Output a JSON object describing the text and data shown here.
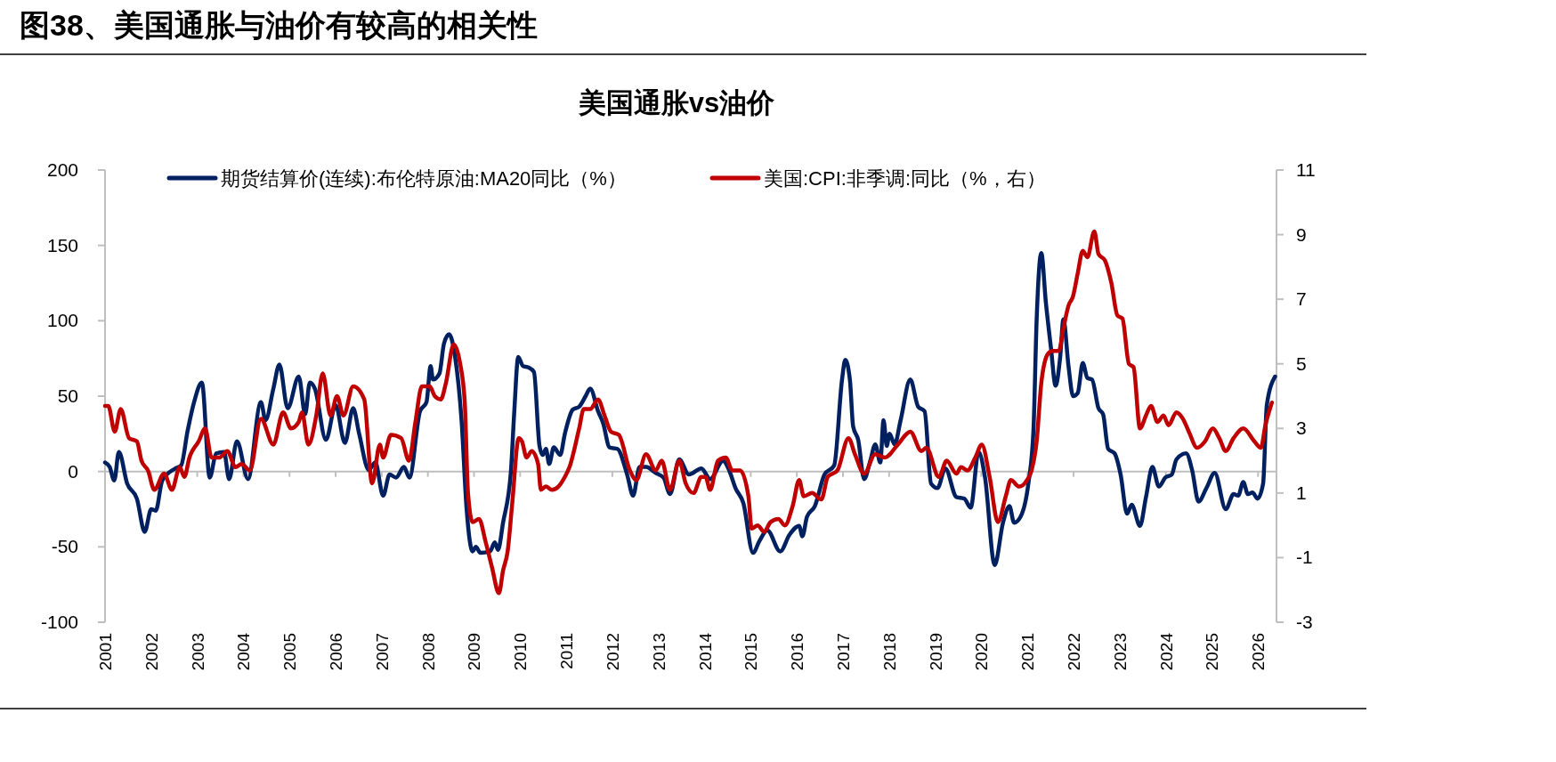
{
  "chart_data": {
    "type": "line",
    "title": "图38、美国通胀与油价有较高的相关性",
    "subtitle": "美国通胀vs油价",
    "xlim": [
      2001,
      2026.4
    ],
    "xticks": [
      2001,
      2002,
      2003,
      2004,
      2005,
      2006,
      2007,
      2008,
      2009,
      2010,
      2011,
      2012,
      2013,
      2014,
      2015,
      2016,
      2017,
      2018,
      2019,
      2020,
      2021,
      2022,
      2023,
      2024,
      2025,
      2026
    ],
    "ylim": [
      -100,
      200
    ],
    "yticks": [
      -100,
      -50,
      0,
      50,
      100,
      150,
      200
    ],
    "y2lim": [
      -3,
      11
    ],
    "y2ticks": [
      -3,
      -1,
      1,
      3,
      5,
      7,
      9,
      11
    ],
    "legend": "top",
    "line_style": "solid",
    "marker": "none",
    "series": [
      {
        "name": "期货结算价(连续):布伦特原油:MA20同比（%）",
        "color": "#002060",
        "x": [
          2001.0,
          2001.1,
          2001.2,
          2001.3,
          2001.48,
          2001.69,
          2001.86,
          2002.0,
          2002.1,
          2002.24,
          2002.52,
          2002.65,
          2002.79,
          2002.93,
          2003.1,
          2003.27,
          2003.41,
          2003.58,
          2003.69,
          2003.86,
          2004.1,
          2004.38,
          2004.48,
          2004.65,
          2004.78,
          2004.96,
          2005.2,
          2005.34,
          2005.44,
          2005.55,
          2005.79,
          2006.0,
          2006.2,
          2006.38,
          2006.51,
          2006.72,
          2006.86,
          2007.03,
          2007.17,
          2007.31,
          2007.48,
          2007.6,
          2007.83,
          2007.97,
          2008.06,
          2008.11,
          2008.25,
          2008.35,
          2008.46,
          2008.59,
          2008.73,
          2008.84,
          2008.97,
          2009.04,
          2009.14,
          2009.35,
          2009.45,
          2009.52,
          2009.63,
          2009.8,
          2009.87,
          2009.96,
          2010.06,
          2010.18,
          2010.3,
          2010.42,
          2010.49,
          2010.56,
          2010.63,
          2010.73,
          2010.87,
          2010.97,
          2011.14,
          2011.28,
          2011.42,
          2011.52,
          2011.69,
          2011.8,
          2011.94,
          2012.11,
          2012.32,
          2012.45,
          2012.59,
          2012.73,
          2012.94,
          2013.11,
          2013.25,
          2013.45,
          2013.66,
          2013.93,
          2014.12,
          2014.4,
          2014.53,
          2014.67,
          2014.84,
          2015.05,
          2015.19,
          2015.36,
          2015.64,
          2015.84,
          2016.05,
          2016.12,
          2016.22,
          2016.39,
          2016.6,
          2016.81,
          2016.98,
          2017.05,
          2017.15,
          2017.22,
          2017.33,
          2017.46,
          2017.6,
          2017.7,
          2017.81,
          2017.88,
          2017.95,
          2018.01,
          2018.12,
          2018.25,
          2018.46,
          2018.63,
          2018.77,
          2018.91,
          2019.05,
          2019.22,
          2019.46,
          2019.63,
          2019.77,
          2019.94,
          2020.08,
          2020.29,
          2020.47,
          2020.61,
          2020.71,
          2020.85,
          2021.02,
          2021.13,
          2021.2,
          2021.3,
          2021.4,
          2021.51,
          2021.61,
          2021.71,
          2021.78,
          2021.89,
          2021.99,
          2022.09,
          2022.2,
          2022.3,
          2022.4,
          2022.54,
          2022.64,
          2022.75,
          2022.89,
          2023.02,
          2023.16,
          2023.26,
          2023.44,
          2023.57,
          2023.71,
          2023.85,
          2023.99,
          2024.13,
          2024.23,
          2024.44,
          2024.57,
          2024.71,
          2024.88,
          2025.06,
          2025.3,
          2025.47,
          2025.57,
          2025.68,
          2025.78,
          2025.88,
          2025.99,
          2026.11,
          2026.19,
          2026.37
        ],
        "values": [
          6,
          3,
          -6,
          13,
          -8,
          -18,
          -40,
          -25,
          -26,
          -6,
          2,
          4,
          27,
          46,
          59,
          -4,
          12,
          13,
          -5,
          20,
          -5,
          46,
          34,
          55,
          71,
          42,
          63,
          38,
          59,
          55,
          21,
          44,
          19,
          42,
          25,
          1,
          6,
          -16,
          -2,
          -4,
          3,
          -4,
          40,
          46,
          70,
          61,
          65,
          85,
          91,
          76,
          34,
          -25,
          -53,
          -50,
          -54,
          -53,
          -47,
          -52,
          -34,
          0,
          38,
          76,
          70,
          69,
          66,
          17,
          11,
          15,
          5,
          16,
          11,
          25,
          41,
          43,
          50,
          55,
          40,
          32,
          16,
          15,
          -2,
          -16,
          3,
          3,
          -1,
          -4,
          -15,
          8,
          -2,
          2,
          -5,
          7,
          1,
          -11,
          -21,
          -54,
          -46,
          -39,
          -53,
          -42,
          -36,
          -43,
          -30,
          -23,
          -2,
          4,
          61,
          74,
          61,
          30,
          21,
          -5,
          8,
          18,
          6,
          34,
          17,
          25,
          18,
          34,
          61,
          43,
          40,
          -8,
          -11,
          2,
          -17,
          -18,
          -24,
          13,
          -4,
          -62,
          -34,
          -23,
          -34,
          -30,
          -8,
          27,
          101,
          145,
          112,
          82,
          57,
          76,
          101,
          70,
          50,
          52,
          72,
          62,
          61,
          42,
          38,
          15,
          12,
          -2,
          -28,
          -22,
          -36,
          -17,
          3,
          -10,
          -4,
          -2,
          8,
          12,
          1,
          -20,
          -11,
          -1,
          -25,
          -15,
          -16,
          -7,
          -15,
          -14,
          -18,
          -8,
          44,
          63
        ]
      },
      {
        "name": "美国:CPI:非季调:同比（%，右）",
        "color": "#c00000",
        "axis": "y2",
        "x": [
          2001.0,
          2001.07,
          2001.21,
          2001.34,
          2001.52,
          2001.69,
          2001.79,
          2001.93,
          2002.07,
          2002.28,
          2002.45,
          2002.62,
          2002.72,
          2002.83,
          2003.03,
          2003.17,
          2003.31,
          2003.48,
          2003.65,
          2003.83,
          2003.96,
          2004.14,
          2004.38,
          2004.65,
          2004.86,
          2005.03,
          2005.2,
          2005.27,
          2005.41,
          2005.58,
          2005.72,
          2005.89,
          2006.03,
          2006.17,
          2006.38,
          2006.62,
          2006.79,
          2006.96,
          2007.03,
          2007.2,
          2007.42,
          2007.59,
          2007.73,
          2007.87,
          2008.04,
          2008.15,
          2008.28,
          2008.39,
          2008.56,
          2008.7,
          2008.8,
          2008.87,
          2008.97,
          2009.11,
          2009.25,
          2009.39,
          2009.54,
          2009.63,
          2009.73,
          2009.83,
          2009.97,
          2010.04,
          2010.14,
          2010.25,
          2010.39,
          2010.45,
          2010.56,
          2010.69,
          2010.83,
          2010.97,
          2011.07,
          2011.28,
          2011.38,
          2011.52,
          2011.69,
          2011.83,
          2011.97,
          2012.14,
          2012.38,
          2012.52,
          2012.73,
          2012.94,
          2013.07,
          2013.25,
          2013.45,
          2013.59,
          2013.76,
          2013.93,
          2014.02,
          2014.12,
          2014.29,
          2014.46,
          2014.6,
          2014.77,
          2014.95,
          2015.02,
          2015.15,
          2015.29,
          2015.43,
          2015.6,
          2015.74,
          2015.91,
          2016.05,
          2016.15,
          2016.33,
          2016.53,
          2016.67,
          2016.88,
          2017.12,
          2017.26,
          2017.46,
          2017.7,
          2017.91,
          2018.19,
          2018.46,
          2018.7,
          2018.81,
          2019.08,
          2019.25,
          2019.46,
          2019.56,
          2019.7,
          2019.87,
          2020.01,
          2020.18,
          2020.36,
          2020.53,
          2020.64,
          2020.82,
          2020.99,
          2021.09,
          2021.2,
          2021.3,
          2021.44,
          2021.54,
          2021.68,
          2021.78,
          2021.89,
          2021.99,
          2022.09,
          2022.2,
          2022.3,
          2022.45,
          2022.54,
          2022.68,
          2022.82,
          2022.95,
          2023.06,
          2023.2,
          2023.3,
          2023.44,
          2023.57,
          2023.68,
          2023.82,
          2023.95,
          2024.06,
          2024.23,
          2024.37,
          2024.5,
          2024.68,
          2024.85,
          2025.02,
          2025.16,
          2025.3,
          2025.47,
          2025.68,
          2025.92,
          2026.06,
          2026.16,
          2026.3
        ],
        "values": [
          3.7,
          3.7,
          2.9,
          3.6,
          2.7,
          2.6,
          2.0,
          1.7,
          1.1,
          1.6,
          1.1,
          1.8,
          1.5,
          2.1,
          2.6,
          3.0,
          2.1,
          2.1,
          2.3,
          1.8,
          1.9,
          1.7,
          3.3,
          2.5,
          3.5,
          3.0,
          3.2,
          3.5,
          2.5,
          3.4,
          4.7,
          3.4,
          4.0,
          3.4,
          4.3,
          3.9,
          1.3,
          2.5,
          2.1,
          2.8,
          2.7,
          2.0,
          3.2,
          4.3,
          4.3,
          4.0,
          3.9,
          4.4,
          5.6,
          5.0,
          3.8,
          1.0,
          0.1,
          0.2,
          -0.5,
          -1.3,
          -2.1,
          -1.4,
          -0.8,
          0.7,
          2.7,
          2.6,
          2.1,
          2.3,
          1.9,
          1.1,
          1.2,
          1.1,
          1.2,
          1.5,
          1.8,
          3.0,
          3.6,
          3.6,
          3.9,
          3.4,
          2.9,
          2.8,
          1.7,
          1.4,
          2.2,
          1.7,
          2.0,
          1.1,
          2.0,
          1.3,
          1.0,
          1.5,
          1.5,
          1.1,
          2.0,
          2.1,
          1.7,
          1.7,
          0.9,
          -0.1,
          0.0,
          -0.2,
          0.1,
          0.2,
          0.0,
          0.6,
          1.4,
          0.9,
          1.0,
          0.8,
          1.5,
          1.7,
          2.7,
          2.2,
          1.6,
          2.2,
          2.1,
          2.5,
          2.9,
          2.3,
          2.4,
          1.5,
          2.0,
          1.6,
          1.8,
          1.7,
          2.1,
          2.5,
          1.5,
          0.1,
          0.9,
          1.4,
          1.2,
          1.4,
          1.7,
          2.6,
          4.4,
          5.3,
          5.4,
          5.4,
          6.1,
          6.8,
          7.1,
          7.8,
          8.5,
          8.3,
          9.1,
          8.4,
          8.2,
          7.5,
          6.5,
          6.4,
          5.0,
          4.9,
          3.0,
          3.4,
          3.7,
          3.2,
          3.4,
          3.1,
          3.5,
          3.3,
          2.9,
          2.4,
          2.6,
          3.0,
          2.7,
          2.3,
          2.7,
          3.0,
          2.6,
          2.4,
          3.1,
          3.8
        ]
      }
    ]
  }
}
